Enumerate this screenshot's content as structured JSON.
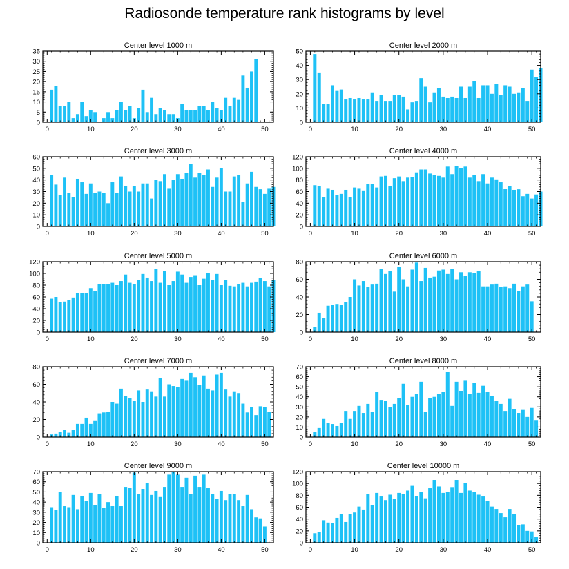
{
  "title": "Radiosonde temperature rank histograms by level",
  "bar_color": "#1ec1f6",
  "chart_data": [
    {
      "type": "bar",
      "title": "Center level 1000 m",
      "xlabel": "",
      "ylabel": "",
      "xlim": [
        -1,
        52
      ],
      "ylim": [
        0,
        35
      ],
      "x_ticks": [
        0,
        10,
        20,
        30,
        40,
        50
      ],
      "y_ticks": [
        0,
        5,
        10,
        15,
        20,
        25,
        30,
        35
      ],
      "values": [
        16,
        18,
        8,
        8,
        10,
        2,
        4,
        10,
        3,
        6,
        5,
        0,
        2,
        5,
        2,
        6,
        10,
        6,
        8,
        2,
        7,
        16,
        5,
        12,
        4,
        7,
        6,
        4,
        4,
        2,
        9,
        6,
        6,
        6,
        8,
        8,
        6,
        10,
        7,
        6,
        12,
        8,
        12,
        11,
        23,
        17,
        25,
        31
      ]
    },
    {
      "type": "bar",
      "title": "Center level 2000 m",
      "xlabel": "",
      "ylabel": "",
      "xlim": [
        -1,
        52
      ],
      "ylim": [
        0,
        50
      ],
      "x_ticks": [
        0,
        10,
        20,
        30,
        40,
        50
      ],
      "y_ticks": [
        0,
        10,
        20,
        30,
        40,
        50
      ],
      "values": [
        48,
        35,
        13,
        13,
        26,
        22,
        23,
        16,
        17,
        16,
        17,
        16,
        16,
        21,
        15,
        19,
        15,
        15,
        19,
        19,
        18,
        9,
        14,
        15,
        31,
        25,
        14,
        21,
        24,
        18,
        17,
        18,
        17,
        25,
        17,
        25,
        29,
        17,
        26,
        26,
        20,
        27,
        19,
        26,
        25,
        20,
        21,
        24,
        15,
        37,
        32,
        38
      ]
    },
    {
      "type": "bar",
      "title": "Center level 3000 m",
      "xlabel": "",
      "ylabel": "",
      "xlim": [
        -1,
        52
      ],
      "ylim": [
        0,
        60
      ],
      "x_ticks": [
        0,
        10,
        20,
        30,
        40,
        50
      ],
      "y_ticks": [
        0,
        10,
        20,
        30,
        40,
        50,
        60
      ],
      "values": [
        44,
        36,
        27,
        42,
        29,
        25,
        41,
        38,
        28,
        37,
        29,
        30,
        29,
        20,
        38,
        29,
        43,
        35,
        30,
        35,
        30,
        37,
        37,
        24,
        40,
        39,
        45,
        33,
        40,
        45,
        41,
        46,
        54,
        42,
        46,
        44,
        49,
        34,
        42,
        50,
        30,
        30,
        43,
        44,
        21,
        37,
        47,
        34,
        32,
        28,
        33,
        34
      ]
    },
    {
      "type": "bar",
      "title": "Center level 4000 m",
      "xlabel": "",
      "ylabel": "",
      "xlim": [
        -1,
        52
      ],
      "ylim": [
        0,
        120
      ],
      "x_ticks": [
        0,
        10,
        20,
        30,
        40,
        50
      ],
      "y_ticks": [
        0,
        20,
        40,
        60,
        80,
        100,
        120
      ],
      "values": [
        71,
        70,
        50,
        66,
        63,
        54,
        56,
        63,
        50,
        67,
        66,
        62,
        73,
        73,
        67,
        86,
        87,
        69,
        83,
        86,
        78,
        84,
        85,
        93,
        98,
        98,
        91,
        89,
        87,
        84,
        103,
        90,
        104,
        100,
        103,
        84,
        88,
        78,
        90,
        74,
        84,
        81,
        76,
        65,
        70,
        63,
        64,
        52,
        56,
        48,
        55,
        60
      ]
    },
    {
      "type": "bar",
      "title": "Center level 5000 m",
      "xlabel": "",
      "ylabel": "",
      "xlim": [
        -1,
        52
      ],
      "ylim": [
        0,
        120
      ],
      "x_ticks": [
        0,
        10,
        20,
        30,
        40,
        50
      ],
      "y_ticks": [
        0,
        20,
        40,
        60,
        80,
        100,
        120
      ],
      "values": [
        57,
        60,
        51,
        52,
        55,
        59,
        67,
        67,
        67,
        75,
        70,
        82,
        82,
        82,
        84,
        80,
        87,
        98,
        84,
        82,
        89,
        99,
        93,
        87,
        108,
        84,
        104,
        80,
        87,
        103,
        98,
        84,
        94,
        97,
        80,
        91,
        100,
        89,
        99,
        80,
        89,
        79,
        78,
        82,
        84,
        78,
        84,
        86,
        92,
        87,
        78,
        89
      ]
    },
    {
      "type": "bar",
      "title": "Center level 6000 m",
      "xlabel": "",
      "ylabel": "",
      "xlim": [
        -1,
        52
      ],
      "ylim": [
        0,
        80
      ],
      "x_ticks": [
        0,
        10,
        20,
        30,
        40,
        50
      ],
      "y_ticks": [
        0,
        20,
        40,
        60,
        80
      ],
      "values": [
        6,
        22,
        16,
        30,
        31,
        32,
        31,
        34,
        40,
        60,
        53,
        58,
        51,
        54,
        55,
        72,
        66,
        69,
        46,
        74,
        60,
        52,
        71,
        79,
        58,
        73,
        62,
        63,
        70,
        71,
        66,
        72,
        60,
        68,
        64,
        68,
        67,
        69,
        52,
        52,
        54,
        55,
        51,
        52,
        50,
        55,
        47,
        52,
        54,
        35
      ]
    },
    {
      "type": "bar",
      "title": "Center level 7000 m",
      "xlabel": "",
      "ylabel": "",
      "xlim": [
        -1,
        52
      ],
      "ylim": [
        0,
        80
      ],
      "x_ticks": [
        0,
        10,
        20,
        30,
        40,
        50
      ],
      "y_ticks": [
        0,
        20,
        40,
        60,
        80
      ],
      "values": [
        3,
        4,
        6,
        8,
        5,
        8,
        15,
        15,
        22,
        15,
        19,
        27,
        28,
        29,
        40,
        38,
        55,
        47,
        44,
        41,
        53,
        40,
        54,
        52,
        46,
        67,
        46,
        60,
        58,
        57,
        66,
        64,
        73,
        68,
        59,
        70,
        55,
        53,
        71,
        73,
        54,
        46,
        52,
        50,
        38,
        28,
        34,
        25,
        35,
        34,
        29
      ]
    },
    {
      "type": "bar",
      "title": "Center level 8000 m",
      "xlabel": "",
      "ylabel": "",
      "xlim": [
        -1,
        52
      ],
      "ylim": [
        0,
        70
      ],
      "x_ticks": [
        0,
        10,
        20,
        30,
        40,
        50
      ],
      "y_ticks": [
        0,
        10,
        20,
        30,
        40,
        50,
        60,
        70
      ],
      "values": [
        5,
        9,
        18,
        14,
        13,
        11,
        14,
        26,
        18,
        26,
        31,
        24,
        33,
        25,
        45,
        37,
        36,
        30,
        33,
        39,
        53,
        32,
        40,
        43,
        55,
        25,
        39,
        40,
        43,
        45,
        65,
        31,
        55,
        46,
        56,
        43,
        54,
        44,
        51,
        45,
        41,
        36,
        33,
        26,
        38,
        28,
        24,
        27,
        20,
        29,
        17
      ]
    },
    {
      "type": "bar",
      "title": "Center level 9000 m",
      "xlabel": "",
      "ylabel": "",
      "xlim": [
        -1,
        52
      ],
      "ylim": [
        0,
        70
      ],
      "x_ticks": [
        0,
        10,
        20,
        30,
        40,
        50
      ],
      "y_ticks": [
        0,
        10,
        20,
        30,
        40,
        50,
        60,
        70
      ],
      "values": [
        35,
        32,
        50,
        36,
        35,
        47,
        33,
        46,
        41,
        49,
        37,
        48,
        34,
        40,
        36,
        46,
        36,
        55,
        54,
        69,
        48,
        53,
        59,
        47,
        51,
        45,
        55,
        67,
        70,
        67,
        55,
        64,
        48,
        66,
        55,
        67,
        54,
        48,
        43,
        51,
        42,
        48,
        48,
        42,
        36,
        47,
        33,
        25,
        24,
        16
      ]
    },
    {
      "type": "bar",
      "title": "Center level 10000 m",
      "xlabel": "",
      "ylabel": "",
      "xlim": [
        -1,
        52
      ],
      "ylim": [
        0,
        120
      ],
      "x_ticks": [
        0,
        10,
        20,
        30,
        40,
        50
      ],
      "y_ticks": [
        0,
        20,
        40,
        60,
        80,
        100,
        120
      ],
      "values": [
        16,
        18,
        38,
        34,
        33,
        42,
        48,
        35,
        48,
        51,
        61,
        56,
        82,
        64,
        84,
        78,
        72,
        81,
        74,
        84,
        82,
        88,
        96,
        79,
        86,
        75,
        92,
        106,
        95,
        84,
        86,
        94,
        106,
        84,
        101,
        88,
        86,
        81,
        78,
        70,
        61,
        57,
        50,
        43,
        57,
        48,
        30,
        31,
        20,
        19,
        10
      ]
    }
  ]
}
